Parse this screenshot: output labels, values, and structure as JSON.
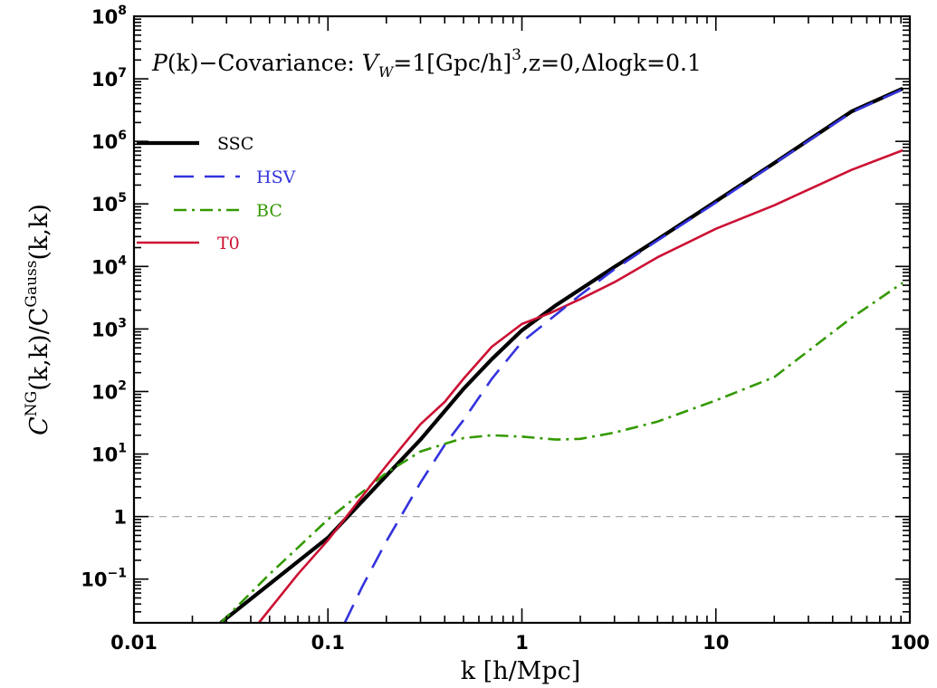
{
  "chart_data": {
    "type": "line",
    "title": {
      "main": "P(k)−Covariance: ",
      "vw": "V",
      "vw_sub": "W",
      "vw_rest": "=1[Gpc/h]",
      "vw_exp": "3",
      "z_part": ",z=0,Δlogk=0.1"
    },
    "xlabel": "k [h/Mpc]",
    "ylabel": {
      "c1": "C",
      "sup1": "NG",
      "mid": "(k,k)/C",
      "sup2": "Gauss",
      "end": "(k,k)"
    },
    "x_scale": "log",
    "y_scale": "log",
    "xlim": [
      0.01,
      100
    ],
    "ylim": [
      0.02,
      100000000
    ],
    "x_ticks": [
      {
        "value": 0.01,
        "label": "0.01"
      },
      {
        "value": 0.1,
        "label": "0.1"
      },
      {
        "value": 1,
        "label": "1"
      },
      {
        "value": 10,
        "label": "10"
      },
      {
        "value": 100,
        "label": "100"
      }
    ],
    "y_ticks": [
      {
        "value": 0.1,
        "base": "10",
        "exp": "−1"
      },
      {
        "value": 1,
        "base": "1",
        "exp": ""
      },
      {
        "value": 10,
        "base": "10",
        "exp": "1"
      },
      {
        "value": 100,
        "base": "10",
        "exp": "2"
      },
      {
        "value": 1000,
        "base": "10",
        "exp": "3"
      },
      {
        "value": 10000,
        "base": "10",
        "exp": "4"
      },
      {
        "value": 100000,
        "base": "10",
        "exp": "5"
      },
      {
        "value": 1000000,
        "base": "10",
        "exp": "6"
      },
      {
        "value": 10000000,
        "base": "10",
        "exp": "7"
      },
      {
        "value": 100000000,
        "base": "10",
        "exp": "8"
      }
    ],
    "reference_line": {
      "y": 1,
      "style": "dashed",
      "color": "#aaaaaa"
    },
    "legend_position": "top-left",
    "series": [
      {
        "name": "SSC",
        "color": "#000000",
        "style": "solid-thick",
        "x": [
          0.028,
          0.1,
          0.2,
          0.3,
          0.5,
          0.7,
          1,
          1.5,
          2,
          3,
          5,
          10,
          20,
          50,
          92
        ],
        "y": [
          0.02,
          0.46,
          4.5,
          17,
          110,
          330,
          950,
          2400,
          4300,
          9800,
          27000,
          110000,
          450000,
          3000000,
          7000000
        ]
      },
      {
        "name": "HSV",
        "color": "#3333dd",
        "style": "dashed",
        "x": [
          0.122,
          0.15,
          0.2,
          0.3,
          0.4,
          0.5,
          0.7,
          1,
          1.5,
          2,
          3,
          5,
          10,
          20,
          50,
          92
        ],
        "y": [
          0.02,
          0.075,
          0.4,
          3.5,
          14,
          35,
          160,
          620,
          1700,
          3500,
          9000,
          26000,
          105000,
          440000,
          2900000,
          6800000
        ]
      },
      {
        "name": "BC",
        "color": "#339900",
        "style": "dash-dot",
        "x": [
          0.028,
          0.05,
          0.1,
          0.2,
          0.3,
          0.5,
          0.7,
          1,
          1.5,
          2,
          3,
          5,
          10,
          20,
          50,
          92
        ],
        "y": [
          0.02,
          0.12,
          0.9,
          5.0,
          11,
          18,
          20,
          19,
          17,
          17.5,
          22,
          33,
          72,
          170,
          1500,
          5500
        ]
      },
      {
        "name": "T0",
        "color": "#cc1133",
        "style": "solid",
        "x": [
          0.044,
          0.07,
          0.1,
          0.15,
          0.2,
          0.3,
          0.4,
          0.5,
          0.7,
          1,
          1.4,
          2,
          3,
          5,
          10,
          20,
          50,
          92
        ],
        "y": [
          0.02,
          0.12,
          0.42,
          2.1,
          6.5,
          30,
          68,
          160,
          520,
          1200,
          1800,
          3000,
          5600,
          14000,
          40000,
          95000,
          350000,
          720000
        ]
      }
    ]
  }
}
